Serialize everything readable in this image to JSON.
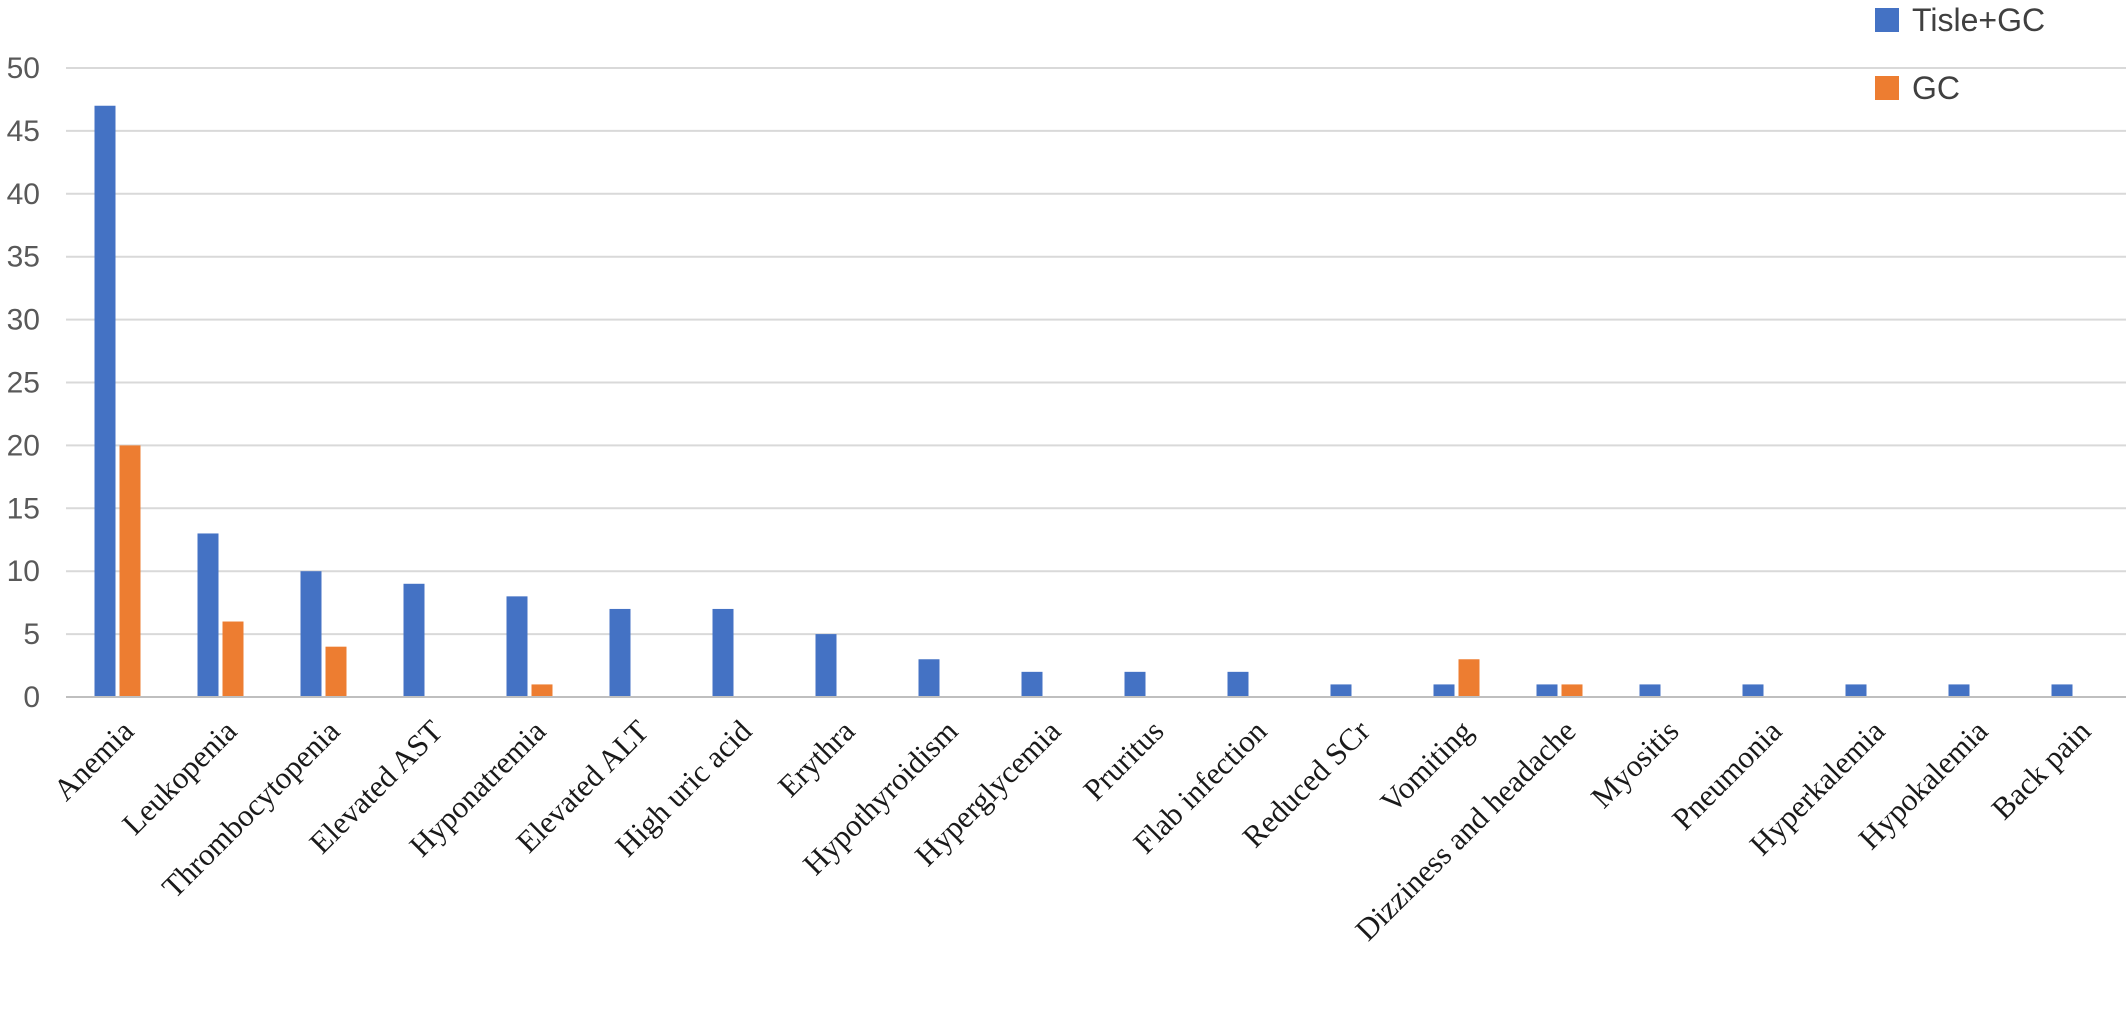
{
  "chart_data": {
    "type": "bar",
    "title": "",
    "xlabel": "",
    "ylabel": "",
    "ylim": [
      0,
      50
    ],
    "yticks": [
      0,
      5,
      10,
      15,
      20,
      25,
      30,
      35,
      40,
      45,
      50
    ],
    "grid": true,
    "legend_position": "top-right",
    "categories": [
      "Anemia",
      "Leukopenia",
      "Thrombocytopenia",
      "Elevated AST",
      "Hyponatremia",
      "Elevated ALT",
      "High uric acid",
      "Erythra",
      "Hypothyroidism",
      "Hyperglycemia",
      "Pruritus",
      "Flab infection",
      "Reduced SCr",
      "Vomiting",
      "Dizziness and headache",
      "Myositis",
      "Pneumonia",
      "Hyperkalemia",
      "Hypokalemia",
      "Back pain"
    ],
    "series": [
      {
        "name": "Tisle+GC",
        "color": "#4472C4",
        "values": [
          47,
          13,
          10,
          9,
          8,
          7,
          7,
          5,
          3,
          2,
          2,
          2,
          1,
          1,
          1,
          1,
          1,
          1,
          1,
          1
        ]
      },
      {
        "name": "GC",
        "color": "#ED7D31",
        "values": [
          20,
          6,
          4,
          0,
          1,
          0,
          0,
          0,
          0,
          0,
          0,
          0,
          0,
          3,
          1,
          0,
          0,
          0,
          0,
          0
        ]
      }
    ]
  }
}
